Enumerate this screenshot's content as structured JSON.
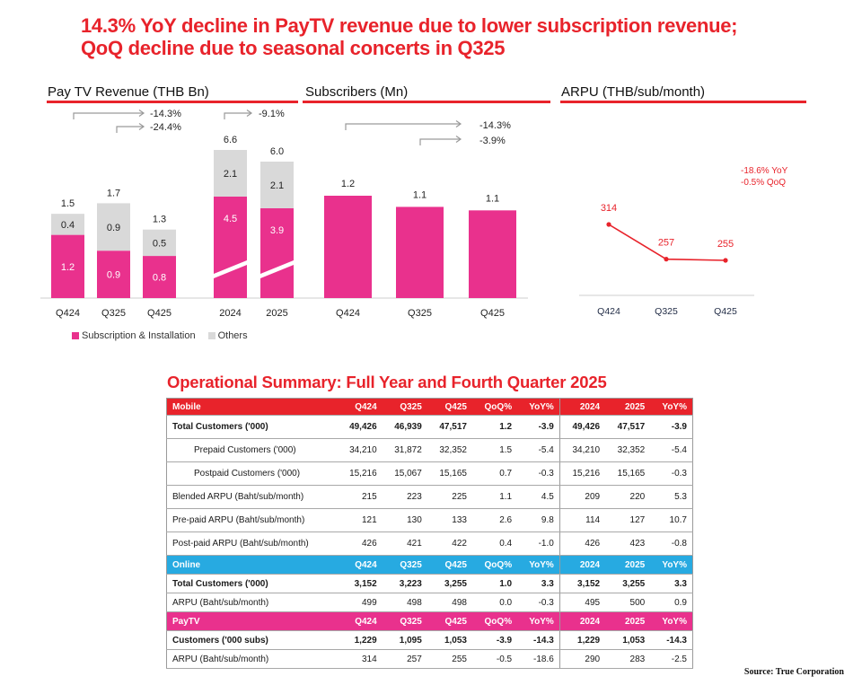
{
  "headline": "14.3% YoY decline in PayTV revenue due to lower subscription revenue; QoQ decline due to seasonal concerts in Q325",
  "colors": {
    "accent_red": "#e8232b",
    "magenta": "#e9318d",
    "grey": "#d9d9d9",
    "online_blue": "#27aae1",
    "arrow_grey": "#9a9a9a"
  },
  "chart_data": [
    {
      "type": "bar",
      "stacked": true,
      "title": "Pay TV Revenue (THB Bn)",
      "categories": [
        "Q424",
        "Q325",
        "Q425",
        "2024",
        "2025"
      ],
      "series": [
        {
          "name": "Subscription & Installation",
          "values": [
            1.2,
            0.9,
            0.8,
            4.5,
            3.9
          ]
        },
        {
          "name": "Others",
          "values": [
            0.4,
            0.9,
            0.5,
            2.1,
            2.1
          ]
        }
      ],
      "totals": [
        "1.5",
        "1.7",
        "1.3",
        "6.6",
        "6.0"
      ],
      "segment_labels": {
        "subscription": [
          "1.2",
          "0.9",
          "0.8",
          "4.5",
          "3.9"
        ],
        "others": [
          "0.4",
          "0.9",
          "0.5",
          "2.1",
          "2.1"
        ]
      },
      "annual_bars_axis_break": true,
      "annotations": [
        {
          "from": "Q424",
          "to": "Q425",
          "label": "-14.3%"
        },
        {
          "from": "Q325",
          "to": "Q425",
          "label": "-24.4%"
        },
        {
          "from": "2024",
          "to": "2025",
          "label": "-9.1%"
        }
      ],
      "legend": [
        "Subscription & Installation",
        "Others"
      ],
      "legend_position": "bottom",
      "xlabel": "",
      "ylabel": ""
    },
    {
      "type": "bar",
      "title": "Subscribers (Mn)",
      "categories": [
        "Q424",
        "Q325",
        "Q425"
      ],
      "values": [
        1.229,
        1.095,
        1.053
      ],
      "value_labels": [
        "1.2",
        "1.1",
        "1.1"
      ],
      "annotations": [
        {
          "from": "Q424",
          "to": "Q425",
          "label": "-14.3%"
        },
        {
          "from": "Q325",
          "to": "Q425",
          "label": "-3.9%"
        }
      ],
      "xlabel": "",
      "ylabel": ""
    },
    {
      "type": "line",
      "title": "ARPU (THB/sub/month)",
      "categories": [
        "Q424",
        "Q325",
        "Q425"
      ],
      "values": [
        314,
        257,
        255
      ],
      "value_labels": [
        "314",
        "257",
        "255"
      ],
      "annotations": [
        "-18.6% YoY",
        "-0.5% QoQ"
      ],
      "xlabel": "",
      "ylabel": ""
    }
  ],
  "table": {
    "title": "Operational Summary: Full Year and Fourth Quarter 2025",
    "sections": [
      {
        "name": "Mobile",
        "headers": [
          "Q424",
          "Q325",
          "Q425",
          "QoQ%",
          "YoY%",
          "2024",
          "2025",
          "YoY%"
        ],
        "rows": [
          {
            "label": "Total Customers ('000)",
            "bold": true,
            "indent": false,
            "values": [
              "49,426",
              "46,939",
              "47,517",
              "1.2",
              "-3.9",
              "49,426",
              "47,517",
              "-3.9"
            ]
          },
          {
            "label": "Prepaid Customers ('000)",
            "bold": false,
            "indent": true,
            "values": [
              "34,210",
              "31,872",
              "32,352",
              "1.5",
              "-5.4",
              "34,210",
              "32,352",
              "-5.4"
            ]
          },
          {
            "label": "Postpaid Customers ('000)",
            "bold": false,
            "indent": true,
            "values": [
              "15,216",
              "15,067",
              "15,165",
              "0.7",
              "-0.3",
              "15,216",
              "15,165",
              "-0.3"
            ]
          },
          {
            "label": "Blended ARPU (Baht/sub/month)",
            "bold": false,
            "indent": false,
            "values": [
              "215",
              "223",
              "225",
              "1.1",
              "4.5",
              "209",
              "220",
              "5.3"
            ]
          },
          {
            "label": "Pre-paid ARPU (Baht/sub/month)",
            "bold": false,
            "indent": false,
            "values": [
              "121",
              "130",
              "133",
              "2.6",
              "9.8",
              "114",
              "127",
              "10.7"
            ]
          },
          {
            "label": "Post-paid ARPU (Baht/sub/month)",
            "bold": false,
            "indent": false,
            "values": [
              "426",
              "421",
              "422",
              "0.4",
              "-1.0",
              "426",
              "423",
              "-0.8"
            ]
          }
        ]
      },
      {
        "name": "Online",
        "headers": [
          "Q424",
          "Q325",
          "Q425",
          "QoQ%",
          "YoY%",
          "2024",
          "2025",
          "YoY%"
        ],
        "rows": [
          {
            "label": "Total Customers ('000)",
            "bold": true,
            "indent": false,
            "values": [
              "3,152",
              "3,223",
              "3,255",
              "1.0",
              "3.3",
              "3,152",
              "3,255",
              "3.3"
            ]
          },
          {
            "label": "ARPU (Baht/sub/month)",
            "bold": false,
            "indent": false,
            "values": [
              "499",
              "498",
              "498",
              "0.0",
              "-0.3",
              "495",
              "500",
              "0.9"
            ]
          }
        ]
      },
      {
        "name": "PayTV",
        "headers": [
          "Q424",
          "Q325",
          "Q425",
          "QoQ%",
          "YoY%",
          "2024",
          "2025",
          "YoY%"
        ],
        "rows": [
          {
            "label": "Customers ('000 subs)",
            "bold": true,
            "indent": false,
            "values": [
              "1,229",
              "1,095",
              "1,053",
              "-3.9",
              "-14.3",
              "1,229",
              "1,053",
              "-14.3"
            ]
          },
          {
            "label": "ARPU (Baht/sub/month)",
            "bold": false,
            "indent": false,
            "values": [
              "314",
              "257",
              "255",
              "-0.5",
              "-18.6",
              "290",
              "283",
              "-2.5"
            ]
          }
        ]
      }
    ]
  },
  "source": "Source: True Corporation"
}
